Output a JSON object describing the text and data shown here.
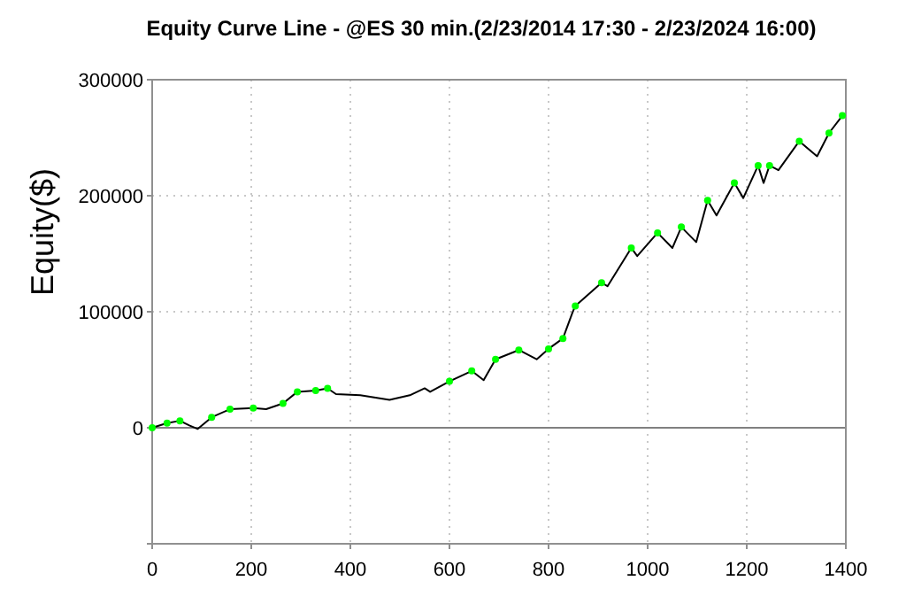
{
  "chart_data": {
    "type": "line",
    "title": "Equity Curve Line - @ES 30 min.(2/23/2014 17:30 - 2/23/2024 16:00)",
    "ylabel": "Equity($)",
    "xlim": [
      0,
      1400
    ],
    "xticks": [
      0,
      200,
      400,
      600,
      800,
      1000,
      1200,
      1400
    ],
    "ylim": [
      -100000,
      300000
    ],
    "yticks": [
      {
        "value": -100000,
        "label": null
      },
      0,
      100000,
      200000,
      300000
    ],
    "grid": true,
    "ref_lines": [
      {
        "axis": "y",
        "value": 0,
        "color": "#808080"
      }
    ],
    "series": [
      {
        "color": "#000000",
        "x": [
          0,
          30,
          56,
          75,
          92,
          120,
          157,
          204,
          230,
          264,
          293,
          330,
          354,
          371,
          420,
          479,
          520,
          550,
          561,
          600,
          645,
          669,
          693,
          740,
          776,
          800,
          829,
          848,
          854,
          907,
          919,
          967,
          979,
          1020,
          1050,
          1068,
          1098,
          1121,
          1139,
          1175,
          1193,
          1223,
          1234,
          1246,
          1264,
          1306,
          1342,
          1366,
          1393
        ],
        "values": [
          0,
          4000,
          6000,
          2000,
          -1000,
          9000,
          16000,
          17000,
          16000,
          21000,
          31000,
          32000,
          34000,
          29000,
          28000,
          24000,
          28000,
          34000,
          31000,
          40000,
          49000,
          41000,
          59000,
          67000,
          59000,
          68000,
          77000,
          99000,
          105000,
          125000,
          122000,
          155000,
          148000,
          168000,
          155000,
          173000,
          160000,
          196000,
          183000,
          211000,
          198000,
          226000,
          211000,
          226000,
          222000,
          247000,
          234000,
          254000,
          269000
        ]
      },
      {
        "type": "scatter",
        "marker": "circle",
        "color": "#00ff00",
        "x": [
          0,
          30,
          56,
          120,
          157,
          204,
          264,
          293,
          330,
          354,
          600,
          645,
          693,
          740,
          800,
          829,
          854,
          907,
          967,
          1020,
          1068,
          1121,
          1175,
          1223,
          1246,
          1306,
          1366,
          1393
        ],
        "values": [
          0,
          4000,
          6000,
          9000,
          16000,
          17000,
          21000,
          31000,
          32000,
          34000,
          40000,
          49000,
          59000,
          67000,
          68000,
          77000,
          105000,
          125000,
          155000,
          168000,
          173000,
          196000,
          211000,
          226000,
          226000,
          247000,
          254000,
          269000
        ]
      }
    ]
  }
}
